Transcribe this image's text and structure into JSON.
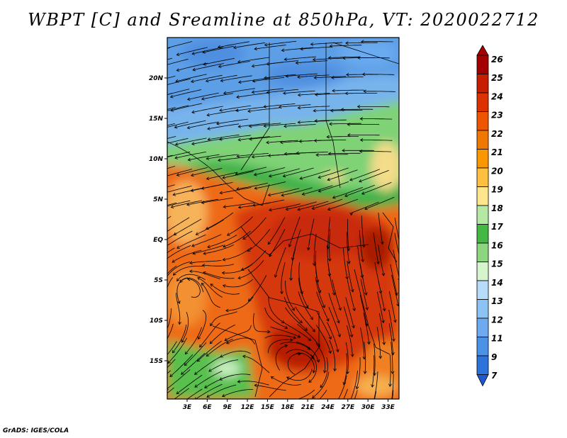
{
  "title": "WBPT [C] and Sreamline at 850hPa, VT: 2020022712",
  "credit": "GrADS: IGES/COLA",
  "map": {
    "variable": "Wet-bulb potential temperature",
    "level": "850hPa",
    "lat_labels": [
      "20N",
      "15N",
      "10N",
      "5N",
      "EQ",
      "5S",
      "10S",
      "15S"
    ],
    "lat_values": [
      20,
      15,
      10,
      5,
      0,
      -5,
      -10,
      -15
    ],
    "lon_labels": [
      "3E",
      "6E",
      "9E",
      "12E",
      "15E",
      "18E",
      "21E",
      "24E",
      "27E",
      "30E",
      "33E"
    ],
    "lon_values": [
      3,
      6,
      9,
      12,
      15,
      18,
      21,
      24,
      27,
      30,
      33
    ]
  },
  "colorbar": {
    "labels": [
      "26",
      "25",
      "24",
      "23",
      "22",
      "21",
      "20",
      "19",
      "18",
      "17",
      "16",
      "15",
      "14",
      "13",
      "12",
      "11",
      "9",
      "7"
    ],
    "colors": [
      "#a50000",
      "#c81e00",
      "#dc3200",
      "#ee5500",
      "#f07800",
      "#fa9600",
      "#ffc040",
      "#fde68c",
      "#b5e8a3",
      "#44b844",
      "#8cd67f",
      "#d7f5cc",
      "#b5dcfa",
      "#8cc3f5",
      "#6eaaf0",
      "#4b91e6",
      "#2d73dc",
      "#1e5acd"
    ]
  }
}
